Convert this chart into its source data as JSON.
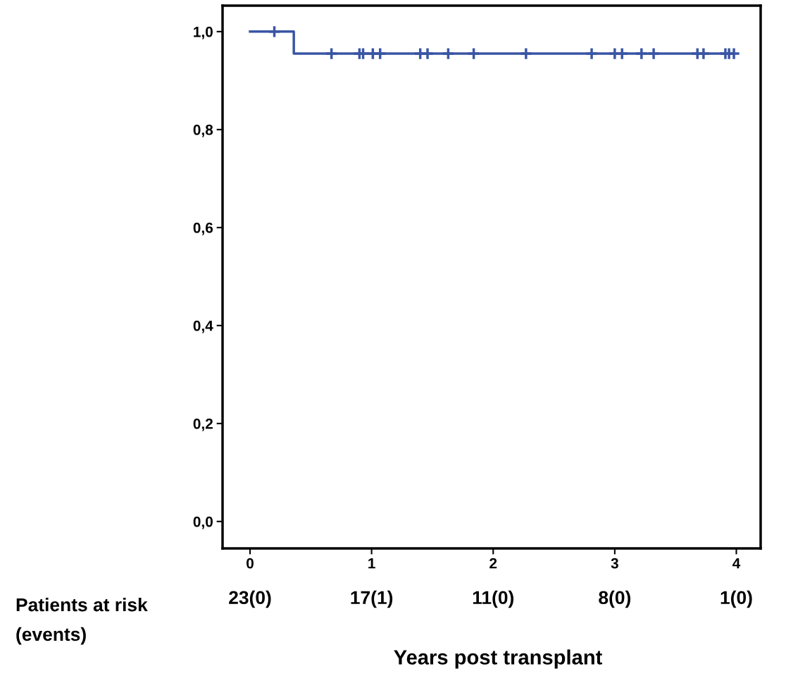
{
  "chart_data": {
    "type": "step",
    "xlabel": "Years post transplant",
    "series": [
      {
        "color": "#3a55a4",
        "x": [
          0,
          0.36,
          3.98
        ],
        "values": [
          1.0,
          0.955,
          0.955
        ]
      },
      {
        "type": "scatter",
        "color": "#3a55a4",
        "marker": "cross",
        "x": [
          0.2,
          0.67,
          0.9,
          0.93,
          1.01,
          1.07,
          1.4,
          1.46,
          1.63,
          1.84,
          2.27,
          2.81,
          3.0,
          3.06,
          3.22,
          3.32,
          3.68,
          3.73,
          3.91,
          3.94,
          3.98
        ],
        "values": [
          1.0,
          0.955,
          0.955,
          0.955,
          0.955,
          0.955,
          0.955,
          0.955,
          0.955,
          0.955,
          0.955,
          0.955,
          0.955,
          0.955,
          0.955,
          0.955,
          0.955,
          0.955,
          0.955,
          0.955,
          0.955
        ]
      }
    ],
    "xlim": [
      -0.226,
      4.2
    ],
    "ylim": [
      -0.055,
      1.053
    ],
    "xticks": [
      0,
      1,
      2,
      3,
      4
    ],
    "yticks": [
      {
        "value": 0,
        "label": "0,0"
      },
      {
        "value": 0.2,
        "label": "0,2"
      },
      {
        "value": 0.4,
        "label": "0,4"
      },
      {
        "value": 0.6,
        "label": "0,6"
      },
      {
        "value": 0.8,
        "label": "0,8"
      },
      {
        "value": 1.0,
        "label": "1,0"
      }
    ],
    "grid": false,
    "legend": false,
    "annotations": [
      "Patients at risk\n(events)",
      "23(0)",
      "17(1)",
      "11(0)",
      "8(0)",
      "1(0)"
    ]
  }
}
